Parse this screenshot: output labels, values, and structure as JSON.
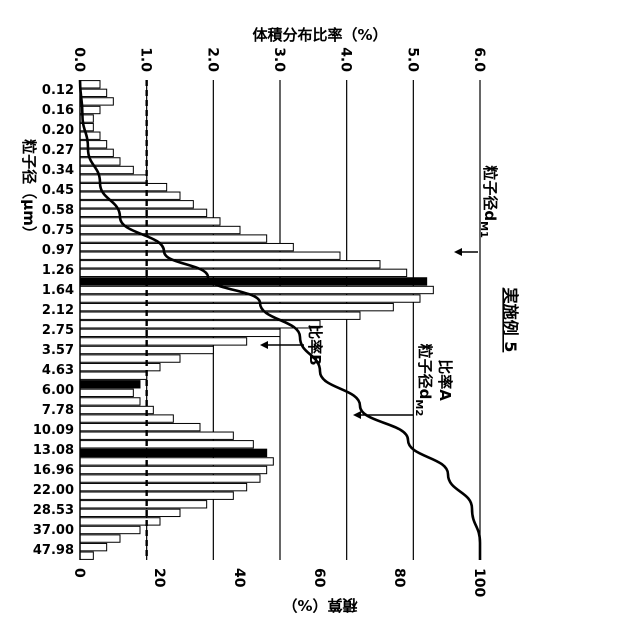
{
  "chart_data": {
    "type": "bar",
    "title": "実施例 5",
    "ylabel_left": "体積分布比率（%）",
    "ylabel_right": "積算（%）",
    "xlabel": "粒子径（μm）",
    "ylim_left": [
      0,
      6
    ],
    "ylim_right": [
      0,
      100
    ],
    "yticks_left": [
      "0.0",
      "1.0",
      "2.0",
      "3.0",
      "4.0",
      "5.0",
      "6.0"
    ],
    "yticks_right": [
      "0",
      "20",
      "40",
      "60",
      "80",
      "100"
    ],
    "x_tick_labels": [
      "0.12",
      "0.16",
      "0.20",
      "0.27",
      "0.34",
      "0.45",
      "0.58",
      "0.75",
      "0.97",
      "1.26",
      "1.64",
      "2.12",
      "2.75",
      "3.57",
      "4.63",
      "6.00",
      "7.78",
      "10.09",
      "13.08",
      "16.96",
      "22.00",
      "28.53",
      "37.00",
      "47.98"
    ],
    "grid": true,
    "reference_line": {
      "value": 1.0,
      "style": "dashed"
    },
    "bars": [
      0.3,
      0.4,
      0.5,
      0.3,
      0.2,
      0.2,
      0.3,
      0.4,
      0.5,
      0.6,
      0.8,
      1.0,
      1.3,
      1.5,
      1.7,
      1.9,
      2.1,
      2.4,
      2.8,
      3.2,
      3.9,
      4.5,
      4.9,
      5.2,
      5.3,
      5.1,
      4.7,
      4.2,
      3.6,
      3.0,
      2.5,
      2.0,
      1.5,
      1.2,
      1.0,
      0.9,
      0.8,
      0.9,
      1.1,
      1.4,
      1.8,
      2.3,
      2.6,
      2.8,
      2.9,
      2.8,
      2.7,
      2.5,
      2.3,
      1.9,
      1.5,
      1.2,
      0.9,
      0.6,
      0.4,
      0.2
    ],
    "highlighted_bars": [
      23,
      43,
      35
    ],
    "cumulative_curve": {
      "x": [
        0,
        4,
        8,
        12,
        16,
        20,
        23,
        26,
        30,
        34,
        38,
        42,
        46,
        50,
        54,
        55,
        56
      ],
      "y": [
        0.0,
        0.6,
        2.0,
        5.0,
        10.0,
        21.0,
        32.0,
        45.0,
        55.0,
        60.0,
        70.0,
        82.0,
        92.0,
        98.0,
        100.0,
        100.0,
        100.0
      ]
    },
    "annotations": {
      "dM1": "粒子径d",
      "dM1_sub": "M1",
      "ratioA": "比率A",
      "dM2": "粒子径d",
      "dM2_sub": "M2",
      "ratioB": "比率B"
    }
  }
}
